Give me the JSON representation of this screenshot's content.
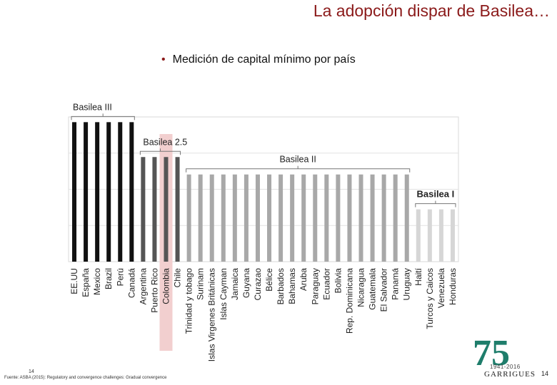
{
  "slide": {
    "title": "La adopción dispar de Basilea…",
    "bullet": "Medición de capital mínimo por país",
    "footer_source": "Fuente: ASBA (2015): Regulatory and convergence challenges: Gradual convergence",
    "footer_page_left": "14",
    "page_number": "14",
    "logo": {
      "number": "75",
      "years": "1941-2016",
      "name": "GARRIGUES"
    }
  },
  "colors": {
    "title": "#8b1a1a",
    "basilea_iii": "#111111",
    "basilea_25": "#555555",
    "basilea_ii": "#a8a8a8",
    "basilea_i": "#d6d6d6",
    "highlight": "#f2cfcf",
    "logo_green": "#1e7d6b",
    "logo_gray": "#9a9a9a"
  },
  "chart_data": {
    "type": "bar",
    "categories": [
      "EE.UU",
      "España",
      "Mexico",
      "Brazil",
      "Perú",
      "Canadá",
      "Argentina",
      "Puerto Rico",
      "Colombia",
      "Chile",
      "Trinidad y tobago",
      "Surinam",
      "Islas Virgenes Británicas",
      "Islas Cayman",
      "Jamaica",
      "Guyana",
      "Curazao",
      "Bélice",
      "Barbados",
      "Bahamas",
      "Aruba",
      "Paraguay",
      "Ecuador",
      "Bolivia",
      "Rep. Dominicana",
      "Nicaragua",
      "Guatemala",
      "El Salvador",
      "Panamá",
      "Uruguay",
      "Haití",
      "Turcos y Caicos",
      "Venezuela",
      "Honduras"
    ],
    "values": [
      4,
      4,
      4,
      4,
      4,
      4,
      3,
      3,
      3,
      3,
      2.5,
      2.5,
      2.5,
      2.5,
      2.5,
      2.5,
      2.5,
      2.5,
      2.5,
      2.5,
      2.5,
      2.5,
      2.5,
      2.5,
      2.5,
      2.5,
      2.5,
      2.5,
      2.5,
      2.5,
      1.5,
      1.5,
      1.5,
      1.5
    ],
    "series_groups": [
      {
        "name": "Basilea III",
        "start": 0,
        "end": 5
      },
      {
        "name": "Basilea 2.5",
        "start": 6,
        "end": 9
      },
      {
        "name": "Basilea II",
        "start": 10,
        "end": 29
      },
      {
        "name": "Basilea I",
        "start": 30,
        "end": 33
      }
    ],
    "highlighted_category": "Colombia",
    "ylim": [
      0,
      4.15
    ],
    "grid": true,
    "title": "",
    "xlabel": "",
    "ylabel": ""
  }
}
